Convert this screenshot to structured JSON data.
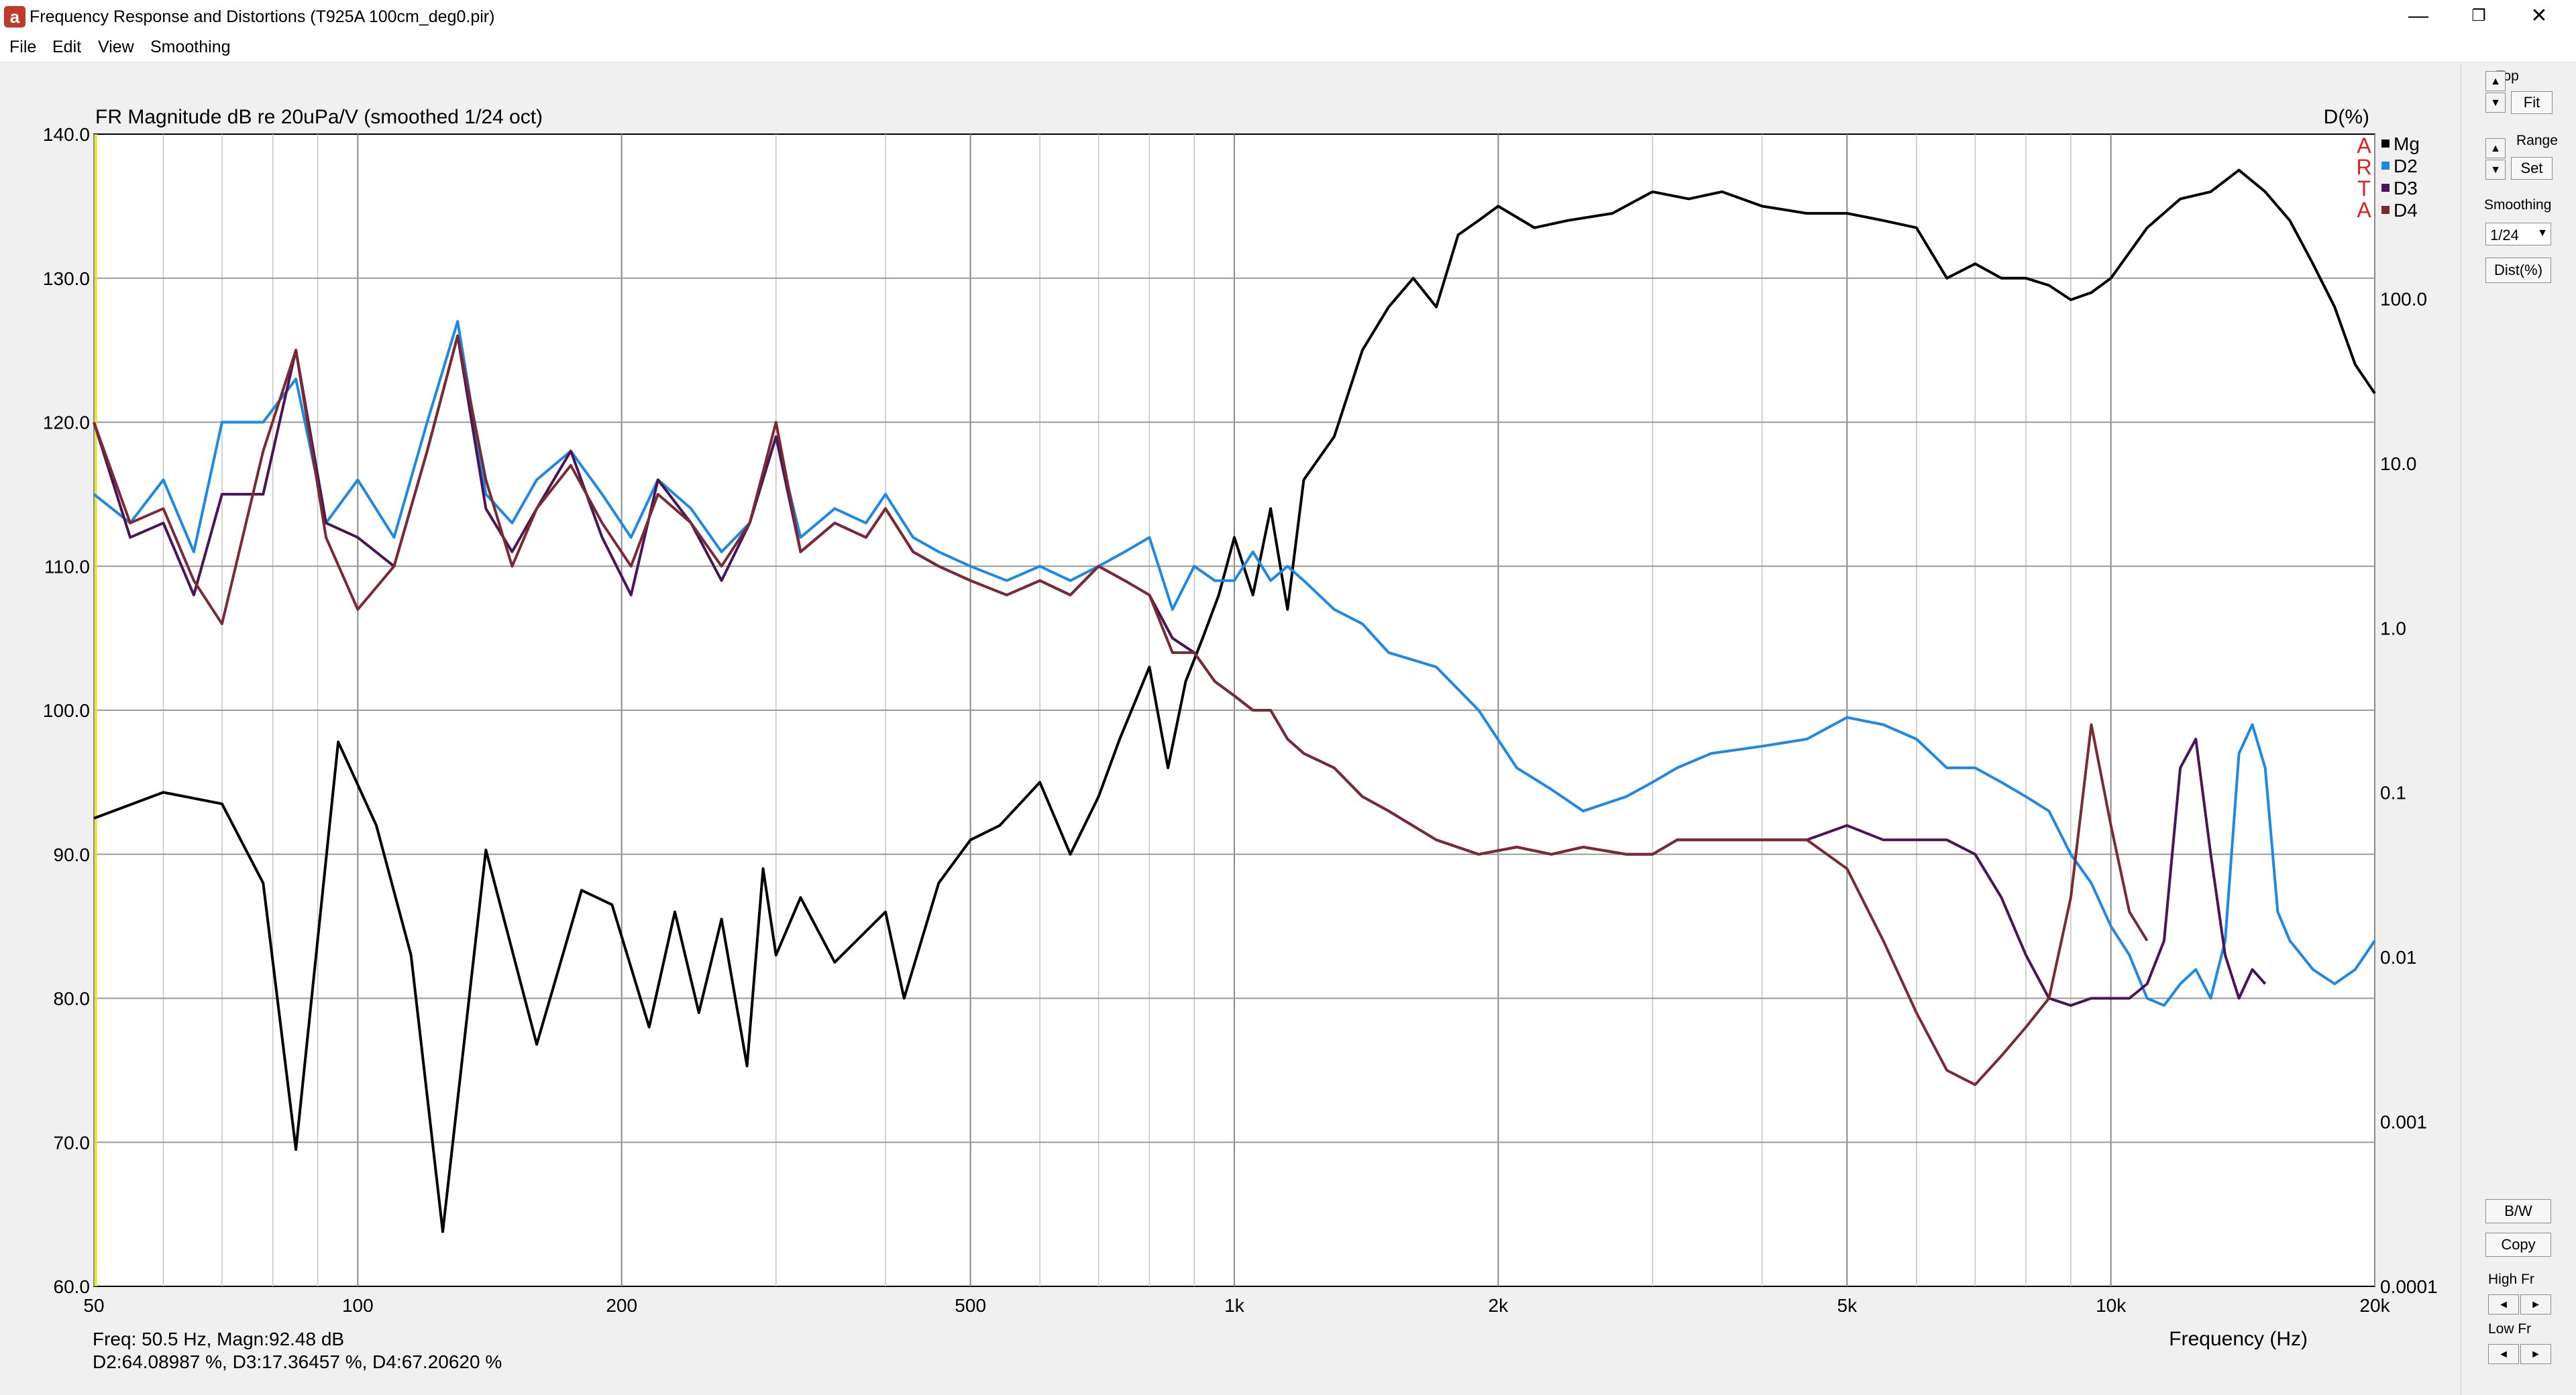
{
  "window": {
    "title": "Frequency Response and Distortions (T925A 100cm_deg0.pir)",
    "app_icon_glyph": "a",
    "minimize_glyph": "—",
    "restore_glyph": "❐",
    "close_glyph": "✕"
  },
  "menu": [
    "File",
    "Edit",
    "View",
    "Smoothing"
  ],
  "plot": {
    "title": "FR Magnitude dB re 20uPa/V (smoothed 1/24 oct)",
    "right_axis_title": "D(%)",
    "watermark": [
      "A",
      "R",
      "T",
      "A"
    ],
    "xlabel": "Frequency (Hz)",
    "left_ticks": [
      "140.0",
      "130.0",
      "120.0",
      "110.0",
      "100.0",
      "90.0",
      "80.0",
      "70.0",
      "60.0"
    ],
    "right_ticks": [
      "100.0",
      "10.0",
      "1.0",
      "0.1",
      "0.01",
      "0.001",
      "0.0001"
    ],
    "x_ticks": [
      "50",
      "100",
      "200",
      "500",
      "1k",
      "2k",
      "5k",
      "10k",
      "20k"
    ],
    "legend": [
      {
        "name": "Mg",
        "color": "#000000"
      },
      {
        "name": "D2",
        "color": "#1e88e5"
      },
      {
        "name": "D3",
        "color": "#4a1459"
      },
      {
        "name": "D4",
        "color": "#7a2a32"
      }
    ]
  },
  "chart_data": {
    "type": "line",
    "title": "FR Magnitude dB re 20uPa/V (smoothed 1/24 oct)",
    "xlabel": "Frequency (Hz)",
    "ylabel": "",
    "y2label": "D(%)",
    "xscale": "log",
    "y2scale": "log",
    "xlim": [
      50,
      20000
    ],
    "ylim": [
      60,
      140
    ],
    "y2lim": [
      0.0001,
      1000
    ],
    "grid": true,
    "legend_position": "top-right",
    "series": [
      {
        "name": "Mg",
        "axis": "left",
        "color": "#000000",
        "x": [
          50,
          60,
          70,
          78,
          85,
          95,
          105,
          115,
          125,
          140,
          160,
          180,
          195,
          215,
          230,
          245,
          260,
          278,
          290,
          300,
          320,
          350,
          400,
          420,
          460,
          500,
          540,
          600,
          650,
          700,
          740,
          800,
          840,
          880,
          920,
          960,
          1000,
          1050,
          1100,
          1150,
          1200,
          1300,
          1400,
          1500,
          1600,
          1700,
          1800,
          1900,
          2000,
          2200,
          2400,
          2700,
          3000,
          3300,
          3600,
          4000,
          4500,
          5000,
          5500,
          6000,
          6500,
          7000,
          7500,
          8000,
          8500,
          9000,
          9500,
          10000,
          11000,
          12000,
          13000,
          14000,
          15000,
          16000,
          17000,
          18000,
          19000,
          20000
        ],
        "y": [
          92.5,
          94.3,
          93.5,
          88,
          69.5,
          97.8,
          92,
          83,
          63.8,
          90.3,
          76.8,
          87.5,
          86.5,
          78,
          86,
          79,
          85.5,
          75.3,
          89,
          83,
          87,
          82.5,
          86,
          80,
          88,
          91,
          92,
          95,
          90,
          94,
          98,
          103,
          96,
          102,
          105,
          108,
          112,
          108,
          114,
          107,
          116,
          119,
          125,
          128,
          130,
          128,
          133,
          134,
          135,
          133.5,
          134,
          134.5,
          136,
          135.5,
          136,
          135,
          134.5,
          134.5,
          134,
          133.5,
          130,
          131,
          130,
          130,
          129.5,
          128.5,
          129,
          130,
          133.5,
          135.5,
          136,
          137.5,
          136,
          134,
          131,
          128,
          124,
          122
        ]
      },
      {
        "name": "D2",
        "axis": "right",
        "color": "#1e88e5",
        "x": [
          50,
          55,
          60,
          65,
          70,
          78,
          85,
          92,
          100,
          110,
          120,
          130,
          140,
          150,
          160,
          175,
          190,
          205,
          220,
          240,
          260,
          280,
          300,
          320,
          350,
          380,
          400,
          430,
          460,
          500,
          550,
          600,
          650,
          700,
          750,
          800,
          850,
          900,
          950,
          1000,
          1050,
          1100,
          1150,
          1200,
          1300,
          1400,
          1500,
          1700,
          1900,
          2100,
          2300,
          2500,
          2800,
          3000,
          3200,
          3500,
          4000,
          4500,
          5000,
          5500,
          6000,
          6500,
          7000,
          7500,
          8000,
          8500,
          9000,
          9500,
          10000,
          10500,
          11000,
          11500,
          12000,
          12500,
          13000,
          13500,
          14000,
          14500,
          15000,
          15500,
          16000,
          16500,
          17000,
          18000,
          19000,
          20000
        ],
        "y": [
          115,
          113,
          116,
          111,
          120,
          120,
          123,
          113,
          116,
          112,
          120,
          127,
          115,
          113,
          116,
          118,
          115,
          112,
          116,
          114,
          111,
          113,
          119,
          112,
          114,
          113,
          115,
          112,
          111,
          110,
          109,
          110,
          109,
          110,
          111,
          112,
          107,
          110,
          109,
          109,
          111,
          109,
          110,
          109,
          107,
          106,
          104,
          103,
          100,
          96,
          94.5,
          93,
          94,
          95,
          96,
          97,
          97.5,
          98,
          99.5,
          99,
          98,
          96,
          96,
          95,
          94,
          93,
          90,
          88,
          85,
          83,
          80,
          79.5,
          81,
          82,
          80,
          84,
          97,
          99,
          96,
          86,
          84,
          83,
          82,
          81,
          82,
          84
        ],
        "d": [
          30,
          18,
          35,
          11,
          100,
          100,
          200,
          15,
          35,
          18,
          100,
          500,
          20,
          15,
          35,
          60,
          25,
          14,
          35,
          22,
          11,
          18,
          100,
          14,
          22,
          18,
          30,
          14,
          11,
          10,
          8,
          10,
          8,
          10,
          12,
          15,
          5,
          10,
          8,
          8,
          12,
          8,
          10,
          8,
          5,
          4,
          2.5,
          2,
          1,
          0.4,
          0.25,
          0.18,
          0.25,
          0.3,
          0.35,
          0.45,
          0.55,
          0.65,
          0.9,
          0.8,
          0.6,
          0.35,
          0.35,
          0.3,
          0.25,
          0.2,
          0.1,
          0.07,
          0.035,
          0.021,
          0.011,
          0.009,
          0.012,
          0.016,
          0.011,
          0.025,
          0.5,
          0.8,
          0.4,
          0.04,
          0.025,
          0.02,
          0.016,
          0.012,
          0.016,
          0.025
        ]
      },
      {
        "name": "D3",
        "axis": "right",
        "color": "#4a1459",
        "x": [
          50,
          55,
          60,
          65,
          70,
          78,
          85,
          92,
          100,
          110,
          120,
          130,
          140,
          150,
          160,
          175,
          190,
          205,
          220,
          240,
          260,
          280,
          300,
          320,
          350,
          380,
          400,
          430,
          460,
          500,
          550,
          600,
          650,
          700,
          750,
          800,
          850,
          900,
          950,
          1000,
          1050,
          1100,
          1150,
          1200,
          1300,
          1400,
          1500,
          1700,
          1900,
          2100,
          2300,
          2500,
          2800,
          3000,
          3200,
          3500,
          4000,
          4500,
          5000,
          5500,
          6000,
          6500,
          7000,
          7500,
          8000,
          8500,
          9000,
          9500,
          10000,
          10500,
          11000,
          11500,
          12000,
          12500,
          13000,
          13500,
          14000,
          14500,
          15000
        ],
        "y": [
          120,
          112,
          113,
          108,
          115,
          115,
          125,
          113,
          112,
          110,
          118,
          126,
          114,
          111,
          114,
          118,
          112,
          108,
          116,
          113,
          109,
          113,
          119,
          111,
          113,
          112,
          114,
          111,
          110,
          109,
          108,
          109,
          108,
          110,
          109,
          108,
          105,
          104,
          102,
          101,
          100,
          100,
          98,
          97,
          96,
          94,
          93,
          91,
          90,
          90.5,
          90,
          90.5,
          90,
          90,
          91,
          91,
          91,
          91,
          92,
          91,
          91,
          91,
          90,
          87,
          83,
          80,
          79.5,
          80,
          80,
          80,
          81,
          84,
          96,
          98,
          90,
          83,
          80,
          82,
          81
        ]
      },
      {
        "name": "D4",
        "axis": "right",
        "color": "#7a2a32",
        "x": [
          50,
          55,
          60,
          65,
          70,
          78,
          85,
          92,
          100,
          110,
          120,
          130,
          140,
          150,
          160,
          175,
          190,
          205,
          220,
          240,
          260,
          280,
          300,
          320,
          350,
          380,
          400,
          430,
          460,
          500,
          550,
          600,
          650,
          700,
          750,
          800,
          850,
          900,
          950,
          1000,
          1050,
          1100,
          1150,
          1200,
          1300,
          1400,
          1500,
          1700,
          1900,
          2100,
          2300,
          2500,
          2800,
          3000,
          3200,
          3500,
          4000,
          4500,
          5000,
          5500,
          6000,
          6500,
          7000,
          7500,
          8000,
          8500,
          9000,
          9500,
          10000,
          10500,
          11000
        ],
        "y": [
          120,
          113,
          114,
          109,
          106,
          118,
          125,
          112,
          107,
          110,
          118,
          126,
          116,
          110,
          114,
          117,
          113,
          110,
          115,
          113,
          110,
          113,
          120,
          111,
          113,
          112,
          114,
          111,
          110,
          109,
          108,
          109,
          108,
          110,
          109,
          108,
          104,
          104,
          102,
          101,
          100,
          100,
          98,
          97,
          96,
          94,
          93,
          91,
          90,
          90.5,
          90,
          90.5,
          90,
          90,
          91,
          91,
          91,
          91,
          89,
          84,
          79,
          75,
          74,
          76,
          78,
          80,
          87,
          99,
          92,
          86,
          84
        ]
      }
    ]
  },
  "readout": {
    "line1": "Freq: 50.5 Hz, Magn:92.48 dB",
    "line2": "D2:64.08987 %, D3:17.36457 %, D4:67.20620 %"
  },
  "panel": {
    "top_label": "Top",
    "fit_label": "Fit",
    "range_label": "Range",
    "set_label": "Set",
    "smoothing_label": "Smoothing",
    "smoothing_value": "1/24",
    "dist_label": "Dist(%)",
    "bw_label": "B/W",
    "copy_label": "Copy",
    "high_fr_label": "High Fr",
    "low_fr_label": "Low Fr",
    "up_glyph": "▲",
    "down_glyph": "▼",
    "left_glyph": "◄",
    "right_glyph": "►"
  }
}
